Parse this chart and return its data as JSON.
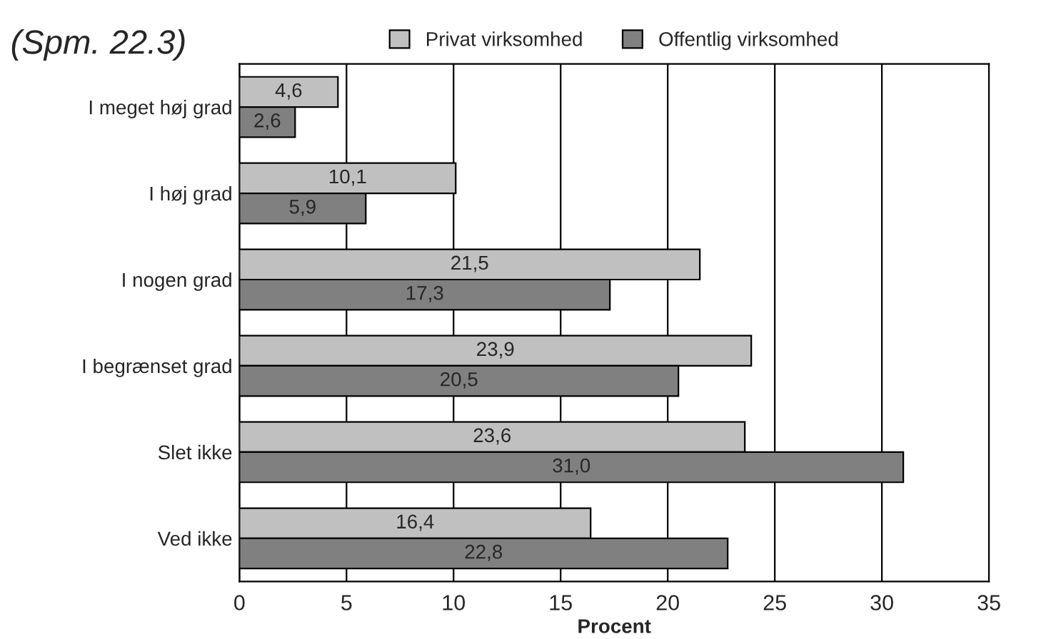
{
  "chart_data": {
    "type": "bar",
    "orientation": "horizontal",
    "title": "(Spm. 22.3)",
    "xlabel": "Procent",
    "categories": [
      "I meget høj grad",
      "I høj grad",
      "I nogen grad",
      "I begrænset grad",
      "Slet ikke",
      "Ved ikke"
    ],
    "series": [
      {
        "name": "Privat virksomhed",
        "color": "#c0c0c0",
        "values": [
          4.6,
          10.1,
          21.5,
          23.9,
          23.6,
          16.4
        ],
        "value_labels": [
          "4,6",
          "10,1",
          "21,5",
          "23,9",
          "23,6",
          "16,4"
        ]
      },
      {
        "name": "Offentlig virksomhed",
        "color": "#808080",
        "values": [
          2.6,
          5.9,
          17.3,
          20.5,
          31.0,
          22.8
        ],
        "value_labels": [
          "2,6",
          "5,9",
          "17,3",
          "20,5",
          "31,0",
          "22,8"
        ]
      }
    ],
    "xlim": [
      0,
      35
    ],
    "xticks": [
      0,
      5,
      10,
      15,
      20,
      25,
      30,
      35
    ],
    "grid": "x",
    "legend": "top"
  }
}
